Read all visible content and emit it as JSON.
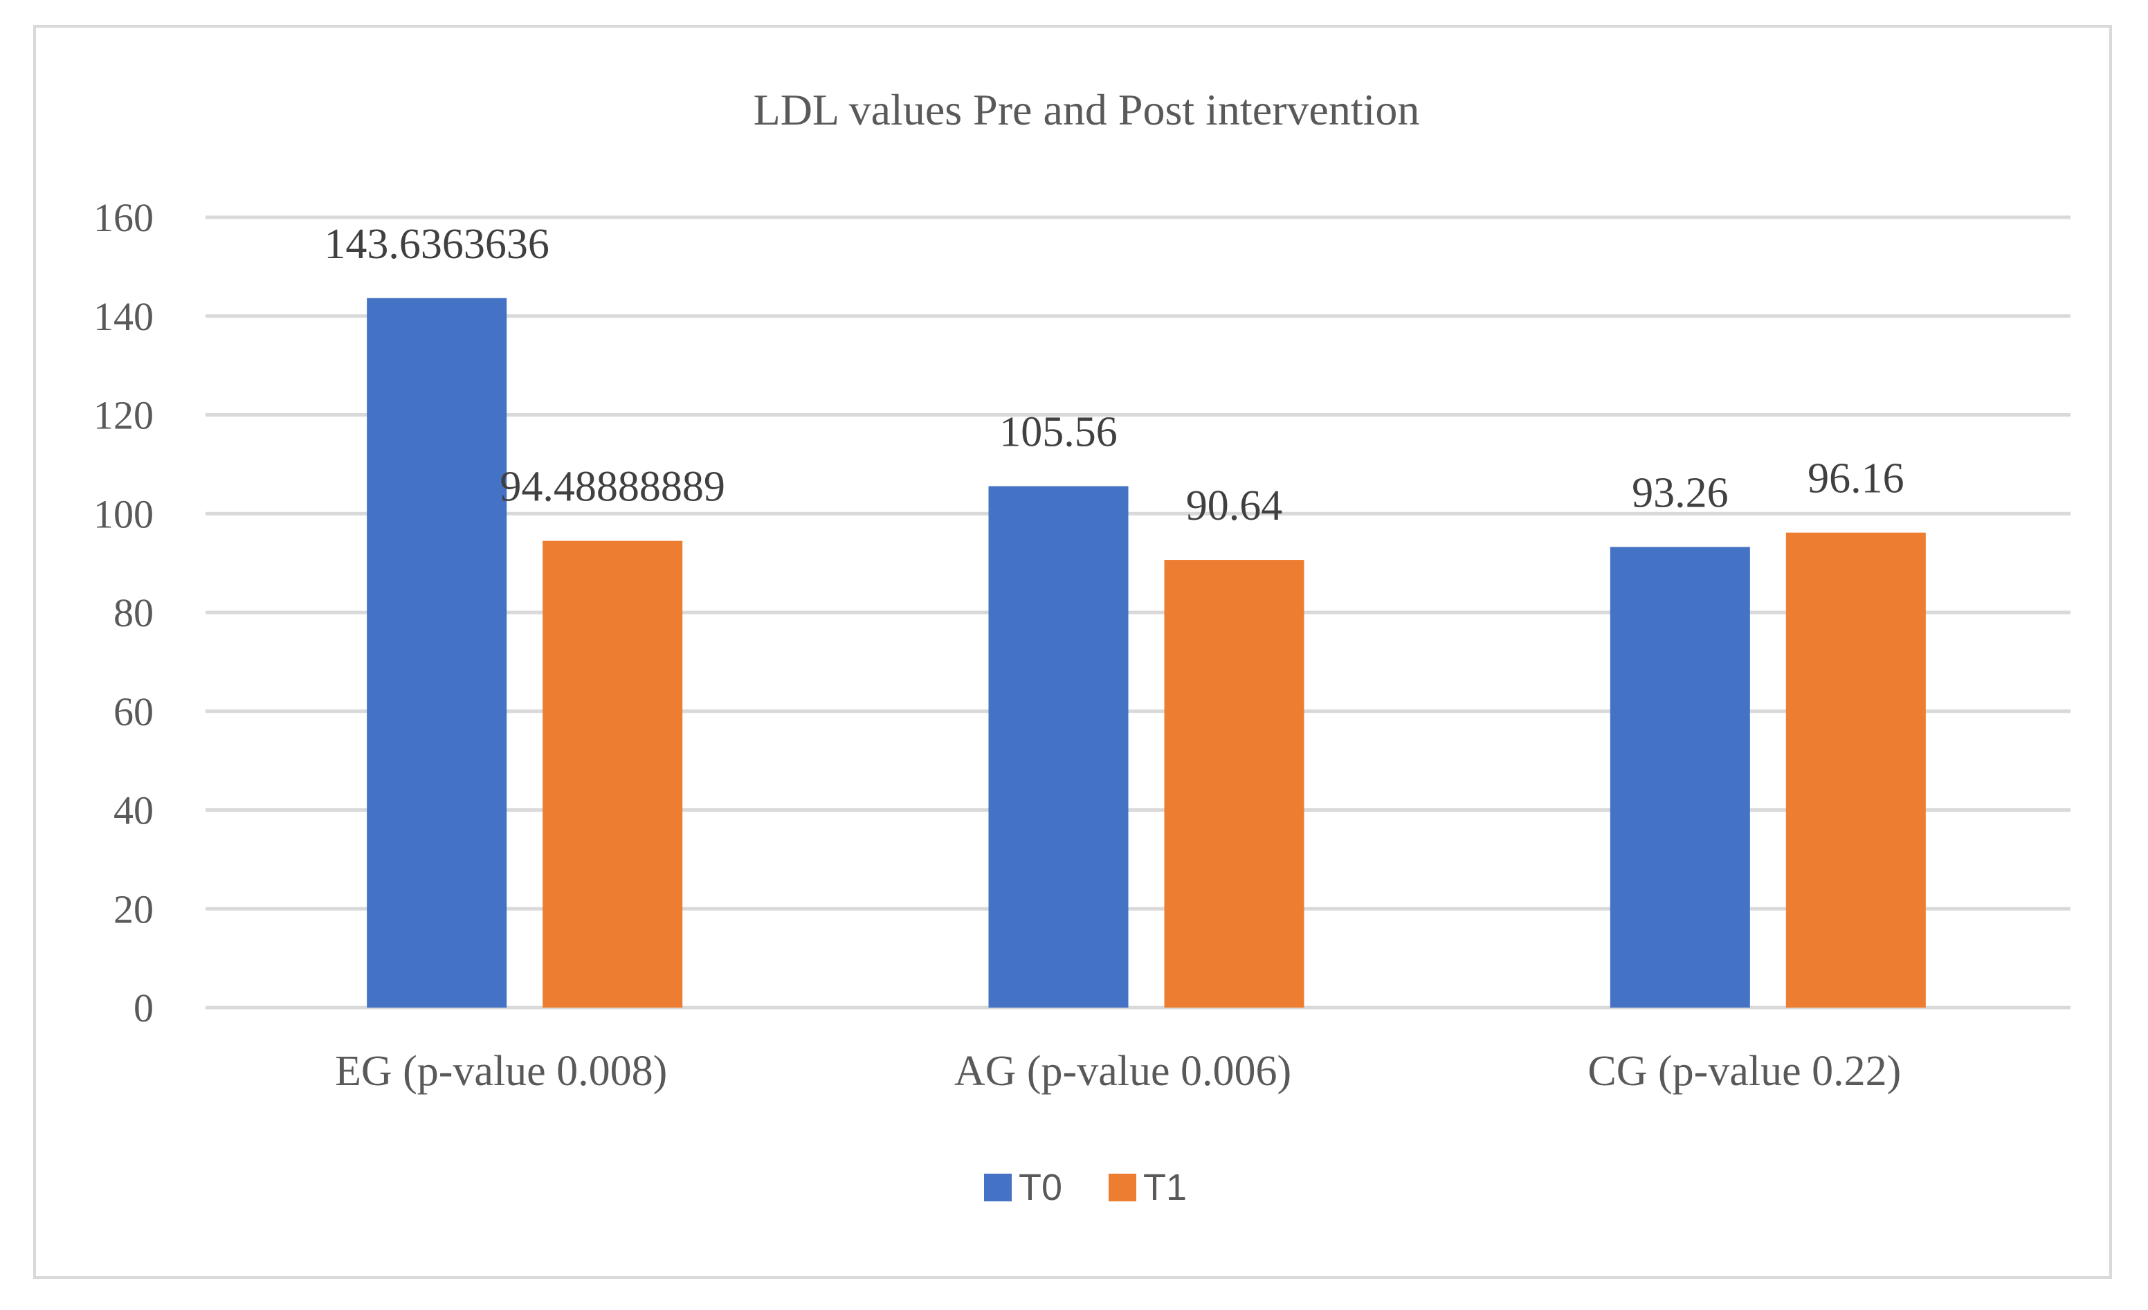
{
  "chart_data": {
    "type": "bar",
    "title": "LDL values Pre and Post intervention",
    "xlabel": "",
    "ylabel": "",
    "ylim": [
      0,
      160
    ],
    "yticks": [
      0,
      20,
      40,
      60,
      80,
      100,
      120,
      140,
      160
    ],
    "grid": true,
    "legend_position": "bottom",
    "categories": [
      "EG (p-value 0.008)",
      "AG (p-value 0.006)",
      "CG (p-value 0.22)"
    ],
    "series": [
      {
        "name": "T0",
        "color": "#4472c4",
        "values": [
          143.6363636,
          105.56,
          93.26
        ],
        "labels": [
          "143.6363636",
          "105.56",
          "93.26"
        ]
      },
      {
        "name": "T1",
        "color": "#ed7d31",
        "values": [
          94.48888889,
          90.64,
          96.16
        ],
        "labels": [
          "94.48888889",
          "90.64",
          "96.16"
        ]
      }
    ]
  }
}
